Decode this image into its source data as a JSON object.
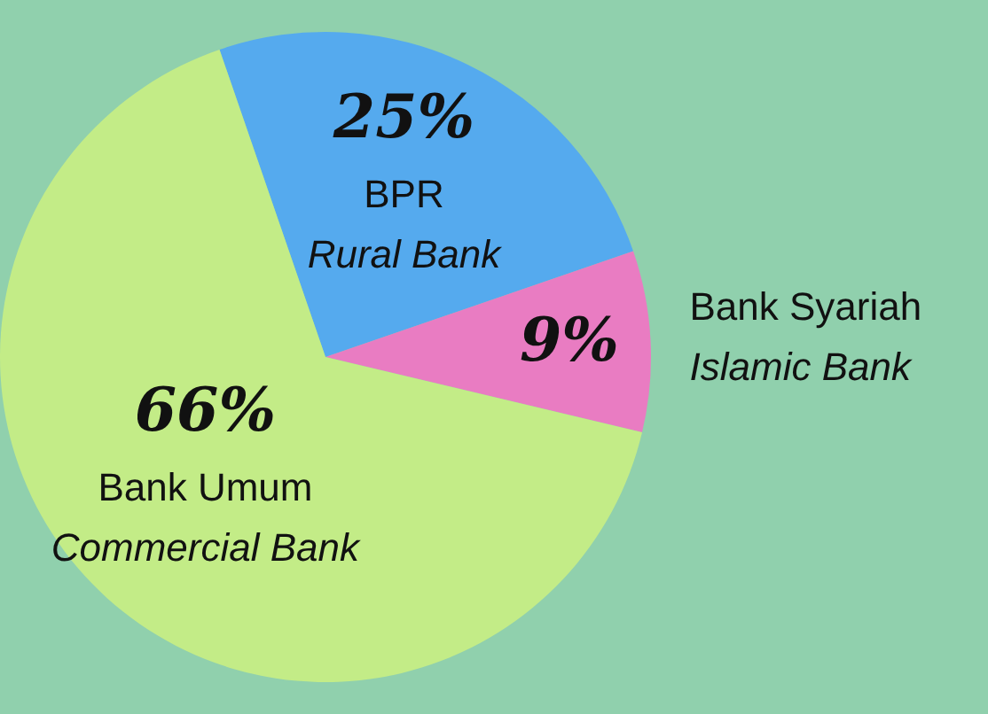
{
  "chart_data": {
    "type": "pie",
    "categories": [
      "BPR\nRural Bank",
      "Bank Syariah\nIslamic Bank",
      "Bank Umum\nCommercial Bank"
    ],
    "values": [
      25,
      9,
      66
    ],
    "colors": [
      "#55aaee",
      "#e97cc2",
      "#c3ec87"
    ],
    "value_labels": [
      "25%",
      "9%",
      "66%"
    ],
    "legend": false
  }
}
